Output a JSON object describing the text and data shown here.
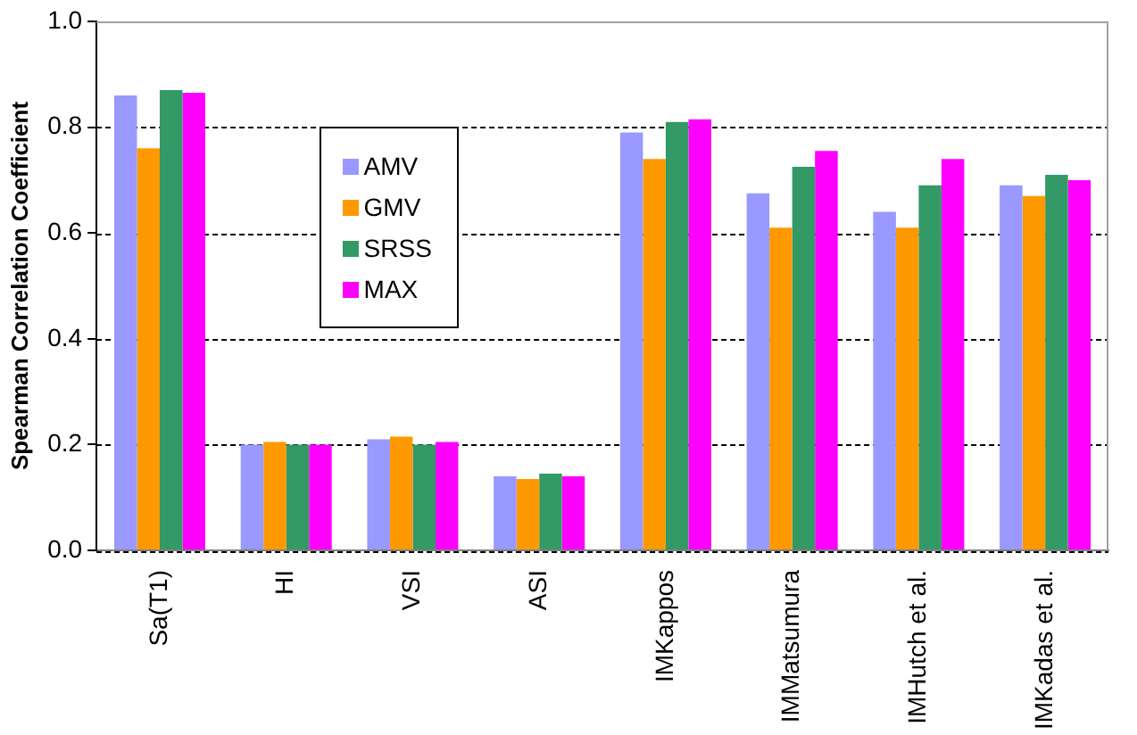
{
  "chart_data": {
    "type": "bar",
    "ylabel": "Spearman Correlation Coefficient",
    "categories": [
      "Sa(T1)",
      "HI",
      "VSI",
      "ASI",
      "IMKappos",
      "IMMatsumura",
      "IMHutch et al.",
      "IMKadas et al."
    ],
    "series": [
      {
        "name": "AMV",
        "color": "#9999ff",
        "values": [
          0.86,
          0.2,
          0.21,
          0.14,
          0.79,
          0.675,
          0.64,
          0.69
        ]
      },
      {
        "name": "GMV",
        "color": "#ff9900",
        "values": [
          0.76,
          0.205,
          0.215,
          0.135,
          0.74,
          0.61,
          0.61,
          0.67
        ]
      },
      {
        "name": "SRSS",
        "color": "#339966",
        "values": [
          0.87,
          0.2,
          0.2,
          0.145,
          0.81,
          0.725,
          0.69,
          0.71
        ]
      },
      {
        "name": "MAX",
        "color": "#ff00ff",
        "values": [
          0.865,
          0.2,
          0.205,
          0.14,
          0.815,
          0.755,
          0.74,
          0.7
        ]
      }
    ],
    "ylim": [
      0,
      1
    ],
    "yticks": [
      {
        "value": 0,
        "label": "0.0"
      },
      {
        "value": 0.2,
        "label": "0.2"
      },
      {
        "value": 0.4,
        "label": "0.4"
      },
      {
        "value": 0.6,
        "label": "0.6"
      },
      {
        "value": 0.8,
        "label": "0.8"
      },
      {
        "value": 1,
        "label": "1.0"
      }
    ],
    "grid": "y",
    "legend": "top left"
  }
}
